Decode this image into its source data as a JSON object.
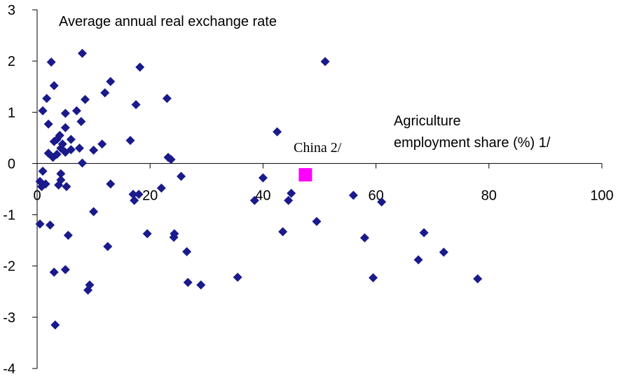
{
  "chart_data": {
    "type": "scatter",
    "title": "",
    "y_axis_title": "Average annual real exchange rate",
    "x_axis_title_lines": [
      "Agriculture",
      "employment  share (%) 1/"
    ],
    "xlim": [
      0,
      100
    ],
    "ylim": [
      -4,
      3
    ],
    "x_ticks": [
      0,
      20,
      40,
      60,
      80,
      100
    ],
    "y_ticks": [
      3,
      2,
      1,
      0,
      -1,
      -2,
      -3,
      -4
    ],
    "x_tick_labels": [
      "0",
      "20",
      "40",
      "60",
      "80",
      "100"
    ],
    "y_tick_labels": [
      "3",
      "2",
      "1",
      "0",
      "-1",
      "-2",
      "-3",
      "-4"
    ],
    "grid": false,
    "legend": "none",
    "marker_color": "#1a1a8c",
    "highlight_color": "#ff00ff",
    "highlight": {
      "label": "China 2/",
      "x": 47.5,
      "y": -0.22
    },
    "points": [
      [
        0.5,
        -0.35
      ],
      [
        0.8,
        -0.45
      ],
      [
        1,
        -0.15
      ],
      [
        1.5,
        -0.4
      ],
      [
        0.5,
        -1.18
      ],
      [
        1,
        1.03
      ],
      [
        1.7,
        1.27
      ],
      [
        2,
        0.77
      ],
      [
        2,
        0.2
      ],
      [
        2.5,
        1.98
      ],
      [
        2.8,
        0.12
      ],
      [
        3,
        1.52
      ],
      [
        3,
        0.43
      ],
      [
        3.5,
        0.18
      ],
      [
        3.5,
        0.47
      ],
      [
        3.8,
        -0.42
      ],
      [
        4,
        0.55
      ],
      [
        4.2,
        0.3
      ],
      [
        4.2,
        -0.2
      ],
      [
        4.2,
        -0.32
      ],
      [
        4.5,
        0.38
      ],
      [
        5,
        0.98
      ],
      [
        5,
        0.7
      ],
      [
        5,
        0.22
      ],
      [
        5.2,
        -0.45
      ],
      [
        5.5,
        -1.4
      ],
      [
        6,
        0.27
      ],
      [
        6,
        0.47
      ],
      [
        2.3,
        -1.2
      ],
      [
        3,
        -2.12
      ],
      [
        3.2,
        -3.15
      ],
      [
        5,
        -2.07
      ],
      [
        7,
        1.03
      ],
      [
        7.5,
        0.3
      ],
      [
        7.8,
        0.82
      ],
      [
        8,
        0.01
      ],
      [
        8,
        2.15
      ],
      [
        8.5,
        1.25
      ],
      [
        9,
        -2.47
      ],
      [
        9.3,
        -2.37
      ],
      [
        10,
        0.26
      ],
      [
        10,
        -0.94
      ],
      [
        11.5,
        0.38
      ],
      [
        12,
        1.38
      ],
      [
        12.5,
        -1.62
      ],
      [
        13,
        1.6
      ],
      [
        13,
        -0.4
      ],
      [
        16.5,
        0.45
      ],
      [
        17,
        -0.6
      ],
      [
        17.2,
        -0.72
      ],
      [
        17.5,
        1.15
      ],
      [
        18,
        -0.6
      ],
      [
        18.2,
        1.88
      ],
      [
        19.5,
        -1.37
      ],
      [
        22,
        -0.48
      ],
      [
        23,
        1.27
      ],
      [
        23.2,
        0.12
      ],
      [
        23.7,
        0.08
      ],
      [
        24.2,
        -1.44
      ],
      [
        24.3,
        -1.37
      ],
      [
        25.5,
        -0.25
      ],
      [
        26.5,
        -1.72
      ],
      [
        26.7,
        -2.32
      ],
      [
        29,
        -2.37
      ],
      [
        35.5,
        -2.22
      ],
      [
        38.5,
        -0.72
      ],
      [
        40,
        -0.28
      ],
      [
        42.5,
        0.62
      ],
      [
        43.5,
        -1.33
      ],
      [
        44.5,
        -0.72
      ],
      [
        45,
        -0.58
      ],
      [
        49.5,
        -1.13
      ],
      [
        51,
        1.99
      ],
      [
        56,
        -0.62
      ],
      [
        58,
        -1.45
      ],
      [
        59.5,
        -2.23
      ],
      [
        61,
        -0.75
      ],
      [
        67.5,
        -1.88
      ],
      [
        68.5,
        -1.35
      ],
      [
        72,
        -1.73
      ],
      [
        78,
        -2.25
      ]
    ]
  }
}
